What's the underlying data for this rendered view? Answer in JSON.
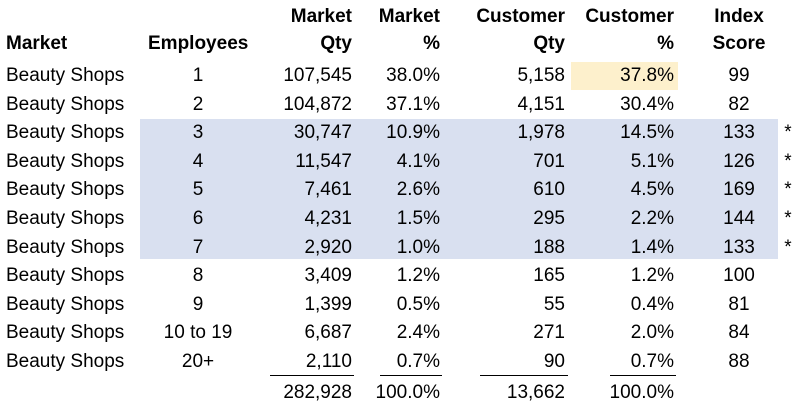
{
  "headers": {
    "market": "Market",
    "employees": "Employees",
    "market_qty_1": "Market",
    "market_qty_2": "Qty",
    "market_pct_1": "Market",
    "market_pct_2": "%",
    "customer_qty_1": "Customer",
    "customer_qty_2": "Qty",
    "customer_pct_1": "Customer",
    "customer_pct_2": "%",
    "index_1": "Index",
    "index_2": "Score"
  },
  "rows": [
    {
      "market": "Beauty Shops",
      "employees": "1",
      "market_qty": "107,545",
      "market_pct": "38.0%",
      "customer_qty": "5,158",
      "customer_pct": "37.8%",
      "index": "99",
      "star": ""
    },
    {
      "market": "Beauty Shops",
      "employees": "2",
      "market_qty": "104,872",
      "market_pct": "37.1%",
      "customer_qty": "4,151",
      "customer_pct": "30.4%",
      "index": "82",
      "star": ""
    },
    {
      "market": "Beauty Shops",
      "employees": "3",
      "market_qty": "30,747",
      "market_pct": "10.9%",
      "customer_qty": "1,978",
      "customer_pct": "14.5%",
      "index": "133",
      "star": "*"
    },
    {
      "market": "Beauty Shops",
      "employees": "4",
      "market_qty": "11,547",
      "market_pct": "4.1%",
      "customer_qty": "701",
      "customer_pct": "5.1%",
      "index": "126",
      "star": "*"
    },
    {
      "market": "Beauty Shops",
      "employees": "5",
      "market_qty": "7,461",
      "market_pct": "2.6%",
      "customer_qty": "610",
      "customer_pct": "4.5%",
      "index": "169",
      "star": "*"
    },
    {
      "market": "Beauty Shops",
      "employees": "6",
      "market_qty": "4,231",
      "market_pct": "1.5%",
      "customer_qty": "295",
      "customer_pct": "2.2%",
      "index": "144",
      "star": "*"
    },
    {
      "market": "Beauty Shops",
      "employees": "7",
      "market_qty": "2,920",
      "market_pct": "1.0%",
      "customer_qty": "188",
      "customer_pct": "1.4%",
      "index": "133",
      "star": "*"
    },
    {
      "market": "Beauty Shops",
      "employees": "8",
      "market_qty": "3,409",
      "market_pct": "1.2%",
      "customer_qty": "165",
      "customer_pct": "1.2%",
      "index": "100",
      "star": ""
    },
    {
      "market": "Beauty Shops",
      "employees": "9",
      "market_qty": "1,399",
      "market_pct": "0.5%",
      "customer_qty": "55",
      "customer_pct": "0.4%",
      "index": "81",
      "star": ""
    },
    {
      "market": "Beauty Shops",
      "employees": "10 to 19",
      "market_qty": "6,687",
      "market_pct": "2.4%",
      "customer_qty": "271",
      "customer_pct": "2.0%",
      "index": "84",
      "star": ""
    },
    {
      "market": "Beauty Shops",
      "employees": "20+",
      "market_qty": "2,110",
      "market_pct": "0.7%",
      "customer_qty": "90",
      "customer_pct": "0.7%",
      "index": "88",
      "star": ""
    }
  ],
  "totals": {
    "market_qty": "282,928",
    "market_pct": "100.0%",
    "customer_qty": "13,662",
    "customer_pct": "100.0%"
  },
  "colors": {
    "highlight_band": "#d9e0f0",
    "highlight_cell": "#fdf0cc"
  }
}
